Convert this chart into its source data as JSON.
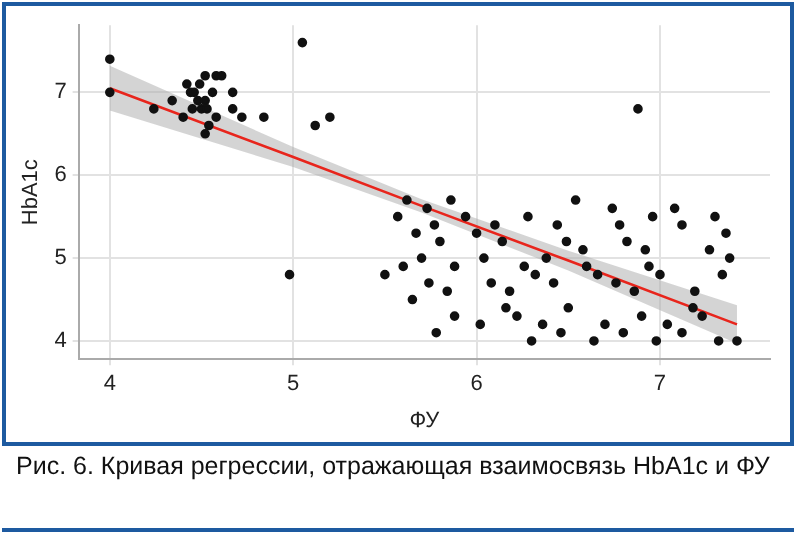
{
  "chart_data": {
    "type": "scatter",
    "xlabel": "ФУ",
    "ylabel": "HbA1c",
    "annotations": [
      "Рис. 6. Кривая регрессии, отражающая взаимосвязь HbA1c и ФУ"
    ],
    "xlim": [
      3.83,
      7.6
    ],
    "ylim": [
      3.78,
      7.81
    ],
    "xticks": [
      4,
      5,
      6,
      7
    ],
    "yticks": [
      4,
      5,
      6,
      7
    ],
    "grid": true,
    "series": [
      {
        "marker": "circle",
        "color": "#111111",
        "x": [
          5.05,
          4.0,
          4.0,
          4.24,
          4.34,
          4.42,
          4.44,
          4.46,
          4.45,
          4.4,
          4.49,
          4.52,
          4.58,
          4.61,
          4.48,
          4.52,
          4.5,
          4.53,
          4.56,
          4.67,
          4.67,
          4.58,
          4.72,
          4.84,
          4.54,
          4.52,
          5.12,
          5.2,
          4.98,
          6.88,
          5.62,
          5.86,
          6.54,
          7.08,
          6.74,
          5.57,
          5.73,
          5.94,
          6.28,
          6.96,
          7.3,
          5.77,
          6.1,
          6.44,
          6.78,
          7.12,
          5.67,
          6.0,
          7.36,
          5.8,
          6.14,
          6.49,
          6.82,
          6.58,
          6.92,
          7.27,
          5.7,
          6.04,
          6.38,
          7.38,
          5.5,
          5.6,
          5.88,
          6.26,
          6.6,
          6.94,
          6.32,
          6.66,
          7.0,
          7.34,
          5.74,
          6.08,
          6.42,
          6.76,
          5.65,
          5.84,
          6.18,
          6.86,
          7.19,
          6.16,
          6.5,
          7.18,
          5.88,
          6.22,
          6.9,
          7.23,
          5.78,
          6.02,
          6.36,
          6.7,
          7.04,
          6.46,
          6.8,
          7.12,
          6.3,
          6.64,
          6.98,
          7.32,
          7.42
        ],
        "values": [
          7.6,
          7.4,
          7.0,
          6.8,
          6.9,
          7.1,
          7.0,
          7.0,
          6.8,
          6.7,
          7.1,
          7.2,
          7.2,
          7.2,
          6.9,
          6.9,
          6.8,
          6.8,
          7.0,
          7.0,
          6.8,
          6.7,
          6.7,
          6.7,
          6.6,
          6.5,
          6.6,
          6.7,
          4.8,
          6.8,
          5.7,
          5.7,
          5.7,
          5.6,
          5.6,
          5.5,
          5.6,
          5.5,
          5.5,
          5.5,
          5.5,
          5.4,
          5.4,
          5.4,
          5.4,
          5.4,
          5.3,
          5.3,
          5.3,
          5.2,
          5.2,
          5.2,
          5.2,
          5.1,
          5.1,
          5.1,
          5.0,
          5.0,
          5.0,
          5.0,
          4.8,
          4.9,
          4.9,
          4.9,
          4.9,
          4.9,
          4.8,
          4.8,
          4.8,
          4.8,
          4.7,
          4.7,
          4.7,
          4.7,
          4.5,
          4.6,
          4.6,
          4.6,
          4.6,
          4.4,
          4.4,
          4.4,
          4.3,
          4.3,
          4.3,
          4.3,
          4.1,
          4.2,
          4.2,
          4.2,
          4.2,
          4.1,
          4.1,
          4.1,
          4.0,
          4.0,
          4.0,
          4.0,
          4.0
        ]
      },
      {
        "type": "line",
        "marker": "none",
        "color": "#e8251c",
        "x": [
          4,
          5,
          5.7,
          6.5,
          7.42
        ],
        "values": [
          7.05,
          6.22,
          5.63,
          4.97,
          4.2
        ],
        "lower": [
          6.78,
          6.1,
          5.55,
          4.85,
          3.97
        ],
        "upper": [
          7.32,
          6.34,
          5.71,
          5.09,
          4.43
        ]
      }
    ]
  }
}
